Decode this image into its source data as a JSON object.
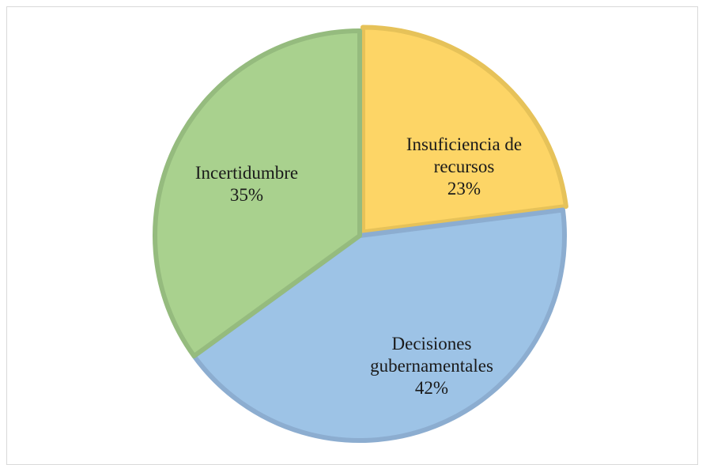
{
  "chart_data": {
    "type": "pie",
    "title": "",
    "legend": "none",
    "slices": [
      {
        "label": [
          "Insuficiencia de",
          "recursos"
        ],
        "percent_text": "23%",
        "value": 23,
        "color": "#fdd566",
        "edge": "#e6c259"
      },
      {
        "label": [
          "Decisiones",
          "gubernamentales"
        ],
        "percent_text": "42%",
        "value": 42,
        "color": "#9dc3e6",
        "edge": "#8cadd0"
      },
      {
        "label": [
          "Incertidumbre"
        ],
        "percent_text": "35%",
        "value": 35,
        "color": "#a9d18e",
        "edge": "#95bb7e"
      }
    ]
  }
}
